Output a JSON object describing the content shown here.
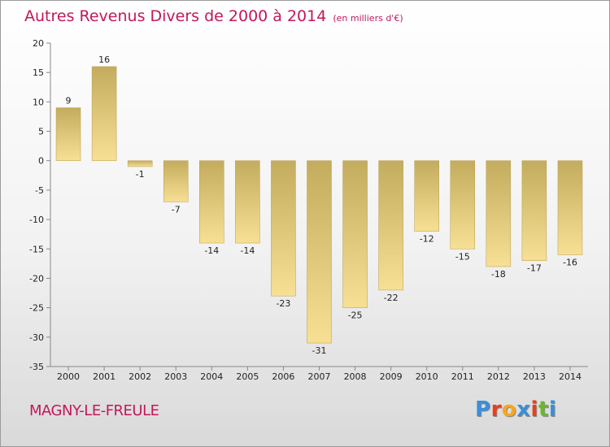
{
  "title": "Autres Revenus Divers de 2000 à 2014",
  "subtitle": "(en milliers d'€)",
  "commune": "MAGNY-LE-FREULE",
  "logo": {
    "letters": [
      "P",
      "r",
      "o",
      "x",
      "i",
      "t",
      "i"
    ],
    "colors": [
      "#3a8fd8",
      "#e8401c",
      "#f5a623",
      "#3a8fd8",
      "#e8401c",
      "#6ab82d",
      "#3a8fd8"
    ]
  },
  "colors": {
    "bar_dark": "#c4ac5e",
    "bar_light": "#f7df94",
    "accent": "#c2185b"
  },
  "chart_data": {
    "type": "bar",
    "title": "Autres Revenus Divers de 2000 à 2014",
    "subtitle": "(en milliers d'€)",
    "categories": [
      "2000",
      "2001",
      "2002",
      "2003",
      "2004",
      "2005",
      "2006",
      "2007",
      "2008",
      "2009",
      "2010",
      "2011",
      "2012",
      "2013",
      "2014"
    ],
    "values": [
      9,
      16,
      -1,
      -7,
      -14,
      -14,
      -23,
      -31,
      -25,
      -22,
      -12,
      -15,
      -18,
      -17,
      -16
    ],
    "ylim": [
      -35,
      20
    ],
    "yticks": [
      20,
      15,
      10,
      5,
      0,
      -5,
      -10,
      -15,
      -20,
      -25,
      -30,
      -35
    ],
    "grid": false,
    "legend": "none"
  }
}
